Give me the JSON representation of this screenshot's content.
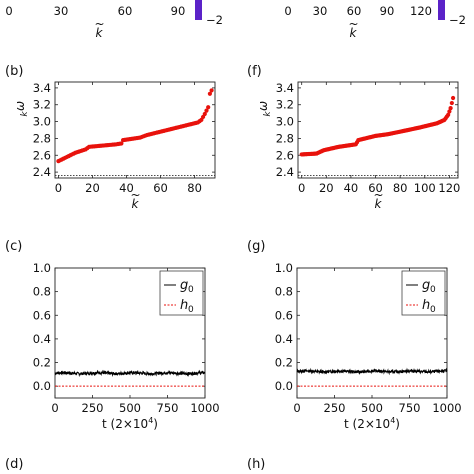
{
  "top": {
    "left_ticks": [
      "0",
      "30",
      "60",
      "90"
    ],
    "left_colorbar_label": "−2",
    "right_ticks": [
      "0",
      "30",
      "60",
      "90",
      "120"
    ],
    "right_colorbar_label": "−2",
    "left_xlabel": "k",
    "right_xlabel": "k"
  },
  "panels": {
    "b": "(b)",
    "f": "(f)",
    "c": "(c)",
    "g": "(g)",
    "d": "(d)",
    "h": "(h)"
  },
  "chart_data": [
    {
      "id": "b",
      "type": "scatter",
      "panel_label": "(b)",
      "xlabel": "k",
      "ylabel": "ω_k",
      "xlim": [
        -2,
        92
      ],
      "ylim": [
        2.33,
        3.47
      ],
      "xticks": [
        0,
        20,
        40,
        60,
        80
      ],
      "yticks": [
        2.4,
        2.6,
        2.8,
        3.0,
        3.2,
        3.4
      ],
      "color": "#e8120c",
      "series": [
        {
          "values_desc": "eigenfrequencies sorted ascending",
          "anchors": [
            [
              0,
              2.53
            ],
            [
              10,
              2.63
            ],
            [
              16,
              2.67
            ],
            [
              18,
              2.7
            ],
            [
              34,
              2.73
            ],
            [
              37,
              2.74
            ],
            [
              38,
              2.78
            ],
            [
              48,
              2.81
            ],
            [
              52,
              2.84
            ],
            [
              58,
              2.87
            ],
            [
              70,
              2.93
            ],
            [
              76,
              2.96
            ],
            [
              82,
              2.99
            ],
            [
              84,
              3.02
            ],
            [
              86,
              3.09
            ],
            [
              88,
              3.17
            ],
            [
              89,
              3.33
            ],
            [
              90,
              3.37
            ]
          ]
        }
      ],
      "reference_line": {
        "y": 2.36,
        "style": "dotted"
      }
    },
    {
      "id": "f",
      "type": "scatter",
      "panel_label": "(f)",
      "xlabel": "k",
      "ylabel": "ω_k",
      "xlim": [
        -3,
        127
      ],
      "ylim": [
        2.33,
        3.47
      ],
      "xticks": [
        0,
        20,
        40,
        60,
        80,
        100,
        120
      ],
      "yticks": [
        2.4,
        2.6,
        2.8,
        3.0,
        3.2,
        3.4
      ],
      "color": "#e8120c",
      "series": [
        {
          "values_desc": "eigenfrequencies sorted ascending",
          "anchors": [
            [
              0,
              2.61
            ],
            [
              12,
              2.62
            ],
            [
              18,
              2.66
            ],
            [
              30,
              2.7
            ],
            [
              44,
              2.73
            ],
            [
              46,
              2.78
            ],
            [
              60,
              2.83
            ],
            [
              70,
              2.85
            ],
            [
              80,
              2.88
            ],
            [
              96,
              2.93
            ],
            [
              110,
              2.98
            ],
            [
              116,
              3.02
            ],
            [
              119,
              3.08
            ],
            [
              121,
              3.16
            ],
            [
              122,
              3.22
            ],
            [
              123,
              3.28
            ]
          ]
        }
      ],
      "reference_line": {
        "y": 2.36,
        "style": "dotted"
      }
    },
    {
      "id": "c",
      "type": "line",
      "panel_label": "(c)",
      "xlabel": "t (2×10⁴)",
      "xlim": [
        0,
        1000
      ],
      "ylim": [
        -0.1,
        1.0
      ],
      "xticks": [
        0,
        250,
        500,
        750,
        1000
      ],
      "yticks": [
        0.0,
        0.2,
        0.4,
        0.6,
        0.8,
        1.0
      ],
      "series": [
        {
          "name": "g0",
          "color": "#000000",
          "mean": 0.11,
          "noise": 0.012
        },
        {
          "name": "h0",
          "color": "#e8120c",
          "dashed": true,
          "value": 0.0
        }
      ],
      "legend": "top-right"
    },
    {
      "id": "g",
      "type": "line",
      "panel_label": "(g)",
      "xlabel": "t (2×10⁴)",
      "xlim": [
        0,
        1000
      ],
      "ylim": [
        -0.1,
        1.0
      ],
      "xticks": [
        0,
        250,
        500,
        750,
        1000
      ],
      "yticks": [
        0.0,
        0.2,
        0.4,
        0.6,
        0.8,
        1.0
      ],
      "series": [
        {
          "name": "g0",
          "color": "#000000",
          "mean": 0.125,
          "noise": 0.012
        },
        {
          "name": "h0",
          "color": "#e8120c",
          "dashed": true,
          "value": 0.0
        }
      ],
      "legend": "top-right"
    }
  ]
}
